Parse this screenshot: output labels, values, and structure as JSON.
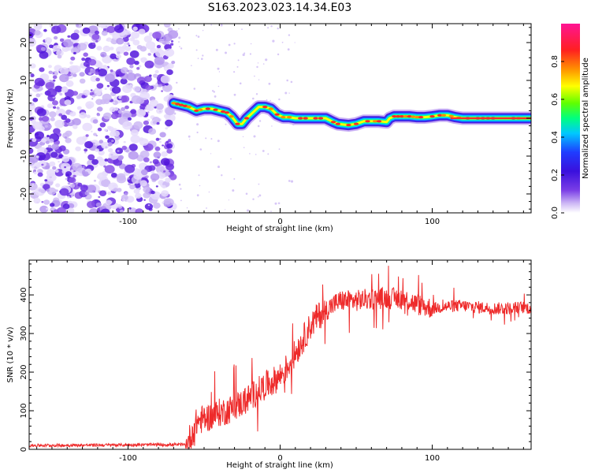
{
  "figure_title": "S163.2023.023.14.34.E03",
  "chart_data": [
    {
      "type": "heatmap",
      "xlabel": "Height of straight line (km)",
      "ylabel": "Frequency (Hz)",
      "xlim": [
        -165,
        165
      ],
      "ylim": [
        -25,
        25
      ],
      "x_ticks": [
        -100,
        0,
        100
      ],
      "y_ticks": [
        -20,
        -10,
        0,
        10,
        20
      ],
      "noise_region_x": [
        -165,
        -70
      ],
      "ridge": {
        "x": [
          -70,
          -65,
          -60,
          -55,
          -50,
          -45,
          -40,
          -35,
          -32,
          -28,
          -25,
          -22,
          -18,
          -14,
          -10,
          -6,
          -2,
          2,
          6,
          10,
          20,
          30,
          35,
          38,
          45,
          50,
          55,
          60,
          65,
          70,
          72,
          75,
          80,
          85,
          90,
          95,
          100,
          105,
          110,
          115,
          120,
          130,
          140,
          150,
          160,
          165
        ],
        "y": [
          4,
          3.5,
          3,
          2,
          2.5,
          2.5,
          2,
          1.5,
          0.5,
          -1.5,
          -1.5,
          0,
          1.5,
          3,
          3,
          2.5,
          1,
          0.3,
          0.3,
          0,
          0,
          0,
          -1,
          -1.5,
          -1.8,
          -1.5,
          -0.8,
          -0.8,
          -0.8,
          -1,
          0,
          0.5,
          0.5,
          0.5,
          0.3,
          0.3,
          0.5,
          0.8,
          0.8,
          0.3,
          0,
          0,
          0,
          0,
          0,
          0
        ]
      },
      "colorbar": {
        "label": "Normalized spectral amplitude",
        "ticks": [
          0.0,
          0.2,
          0.4,
          0.6,
          0.8
        ],
        "colormap": [
          "#ffffff",
          "#cdb8f5",
          "#7a3ee6",
          "#3a10dd",
          "#1f3cff",
          "#00c8ff",
          "#00ff80",
          "#60ff00",
          "#ffff00",
          "#ff9000",
          "#ff2020",
          "#ff1493"
        ]
      }
    },
    {
      "type": "line",
      "xlabel": "Height of straight line (km)",
      "ylabel": "SNR (10 * v/v)",
      "xlim": [
        -165,
        165
      ],
      "ylim": [
        0,
        490
      ],
      "x_ticks": [
        -100,
        0,
        100
      ],
      "y_ticks": [
        0,
        100,
        200,
        300,
        400
      ],
      "color": "#ee2a2a",
      "series": [
        {
          "x": [
            -165,
            -120,
            -80,
            -62,
            -58,
            -55,
            -50,
            -45,
            -40,
            -35,
            -30,
            -25,
            -20,
            -15,
            -10,
            -5,
            0,
            5,
            10,
            15,
            20,
            25,
            30,
            35,
            40,
            50,
            60,
            70,
            80,
            85,
            90,
            95,
            100,
            110,
            120,
            130,
            140,
            150,
            160,
            165
          ],
          "y": [
            10,
            11,
            12,
            12,
            40,
            70,
            80,
            85,
            95,
            100,
            110,
            120,
            135,
            150,
            165,
            175,
            190,
            215,
            250,
            285,
            320,
            345,
            360,
            375,
            385,
            385,
            390,
            392,
            390,
            385,
            375,
            370,
            365,
            370,
            372,
            368,
            365,
            365,
            368,
            365
          ]
        }
      ]
    }
  ]
}
